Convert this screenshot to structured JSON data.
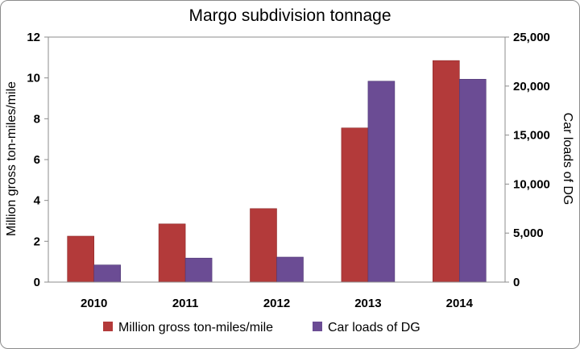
{
  "chart_data": {
    "type": "bar",
    "title": "Margo subdivision tonnage",
    "categories": [
      "2010",
      "2011",
      "2012",
      "2013",
      "2014"
    ],
    "series": [
      {
        "name": "Million gross ton-miles/mile",
        "axis": "left",
        "color": "#b33a3a",
        "values": [
          2.25,
          2.85,
          3.6,
          7.55,
          10.85
        ]
      },
      {
        "name": "Car loads of DG",
        "axis": "right",
        "color": "#6b4c94",
        "values": [
          1750,
          2450,
          2550,
          20500,
          20700
        ]
      }
    ],
    "ylabel": "Million gross ton-miles/mile",
    "y2label": "Car loads of DG",
    "ylim": [
      0,
      12
    ],
    "y2lim": [
      0,
      25000
    ],
    "yticks": [
      "0",
      "2",
      "4",
      "6",
      "8",
      "10",
      "12"
    ],
    "y2ticks": [
      "0",
      "5,000",
      "10,000",
      "15,000",
      "20,000",
      "25,000"
    ],
    "grid": false,
    "legend_position": "bottom"
  }
}
